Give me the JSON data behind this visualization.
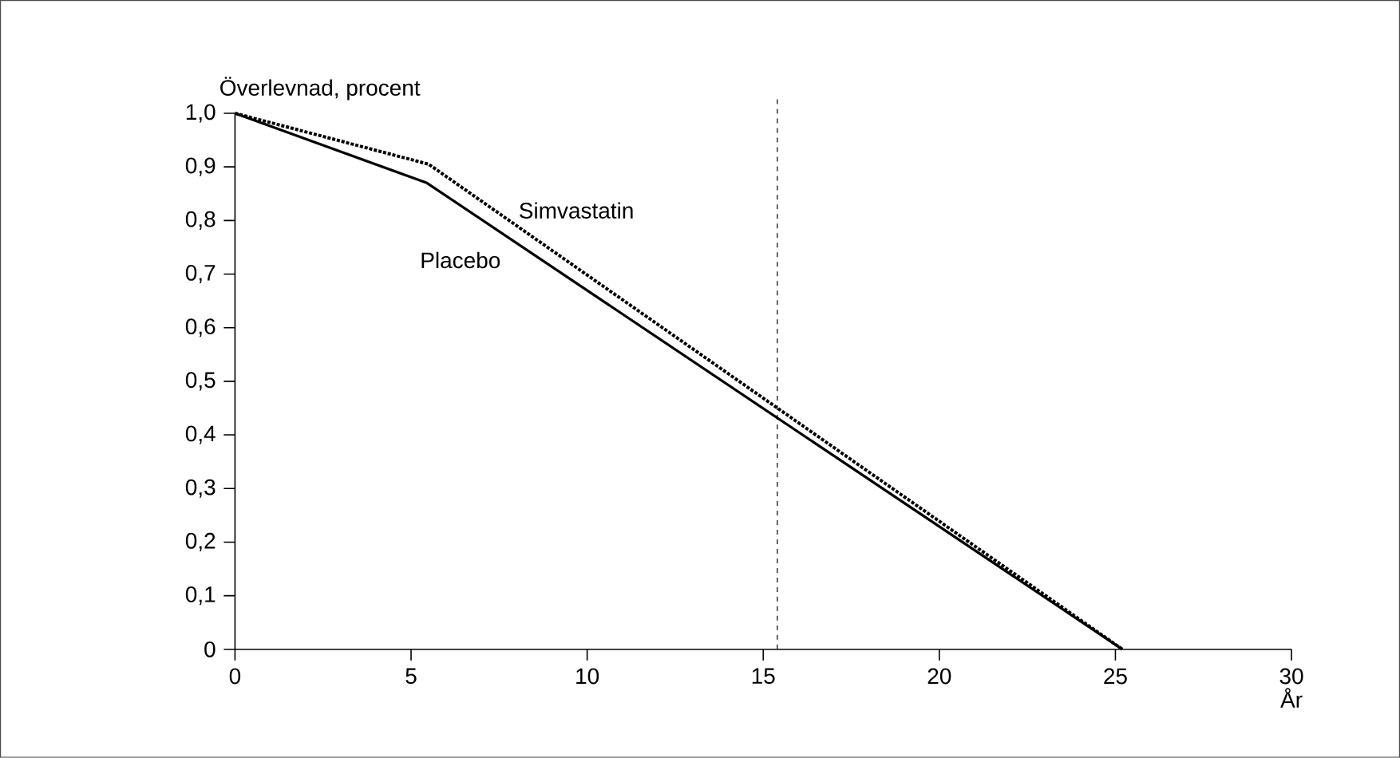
{
  "chart_data": {
    "type": "line",
    "ylabel": "Överlevnad, procent",
    "xlabel": "År",
    "xlim": [
      0,
      30
    ],
    "ylim": [
      0,
      1.0
    ],
    "xticks": [
      0,
      5,
      10,
      15,
      20,
      25,
      30
    ],
    "yticks": [
      0,
      {
        "value": 0.1,
        "label": "0,1"
      },
      {
        "value": 0.2,
        "label": "0,2"
      },
      {
        "value": 0.3,
        "label": "0,3"
      },
      {
        "value": 0.4,
        "label": "0,4"
      },
      {
        "value": 0.5,
        "label": "0,5"
      },
      {
        "value": 0.6,
        "label": "0,6"
      },
      {
        "value": 0.7,
        "label": "0,7"
      },
      {
        "value": 0.8,
        "label": "0,8"
      },
      {
        "value": 0.9,
        "label": "0,9"
      },
      {
        "value": 1.0,
        "label": "1,0"
      }
    ],
    "series": [
      {
        "name": "Placebo",
        "color": "#000000",
        "line_style": "solid",
        "x": [
          0,
          5.45,
          25.2
        ],
        "values": [
          1.0,
          0.87,
          0
        ]
      },
      {
        "name": "Simvastatin",
        "color": "#000000",
        "line_style": "dotted",
        "x": [
          0,
          5.5,
          25.2
        ],
        "values": [
          1.0,
          0.905,
          0
        ]
      }
    ],
    "ref_lines": [
      {
        "axis": "x",
        "value": 15.4,
        "color": "#000000",
        "line_style": "dashed"
      }
    ],
    "grid": false,
    "legend": false,
    "marker": "none"
  }
}
